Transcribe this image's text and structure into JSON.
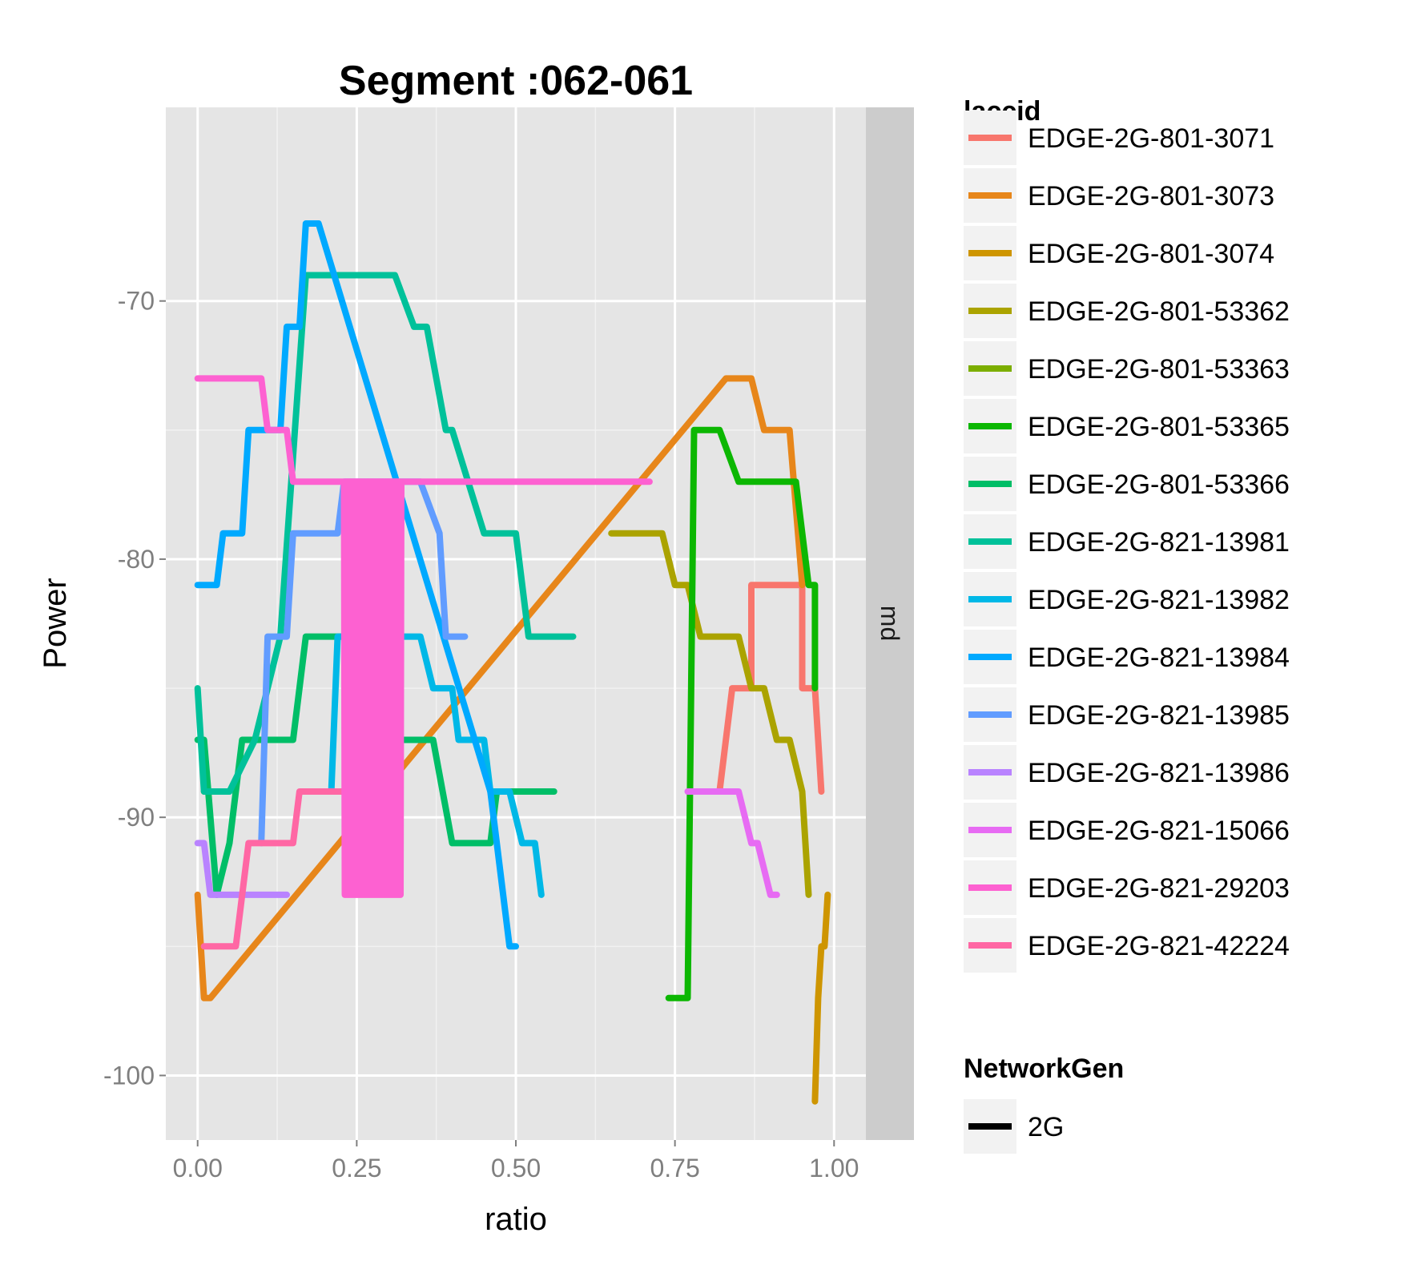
{
  "chart_data": {
    "type": "line",
    "title": "Segment :062-061",
    "xlabel": "ratio",
    "ylabel": "Power",
    "xlim": [
      -0.05,
      1.05
    ],
    "ylim": [
      -102.5,
      -62.5
    ],
    "x_ticks": [
      0.0,
      0.25,
      0.5,
      0.75,
      1.0
    ],
    "x_tick_labels": [
      "0.00",
      "0.25",
      "0.50",
      "0.75",
      "1.00"
    ],
    "y_ticks": [
      -70,
      -80,
      -90,
      -100
    ],
    "y_tick_labels": [
      "-70",
      "-80",
      "-90",
      "-100"
    ],
    "facet_strip_label": "md",
    "grid": true,
    "legend_position": "right",
    "legend_color_title": "laccid",
    "legend_linetype_title": "NetworkGen",
    "legend_linetype_entries": [
      {
        "label": "2G",
        "color": "#000000"
      }
    ],
    "series": [
      {
        "name": "EDGE-2G-801-3071",
        "color": "#F8766D",
        "x": [
          0.82,
          0.84,
          0.85,
          0.87,
          0.87,
          0.9,
          0.94,
          0.95,
          0.95,
          0.97,
          0.98
        ],
        "y": [
          -89,
          -85,
          -85,
          -85,
          -81,
          -81,
          -81,
          -81,
          -85,
          -85,
          -89
        ]
      },
      {
        "name": "EDGE-2G-801-3073",
        "color": "#E7861A",
        "x": [
          0.0,
          0.01,
          0.02,
          0.83,
          0.87,
          0.89,
          0.93,
          0.95
        ],
        "y": [
          -93,
          -97,
          -97,
          -73,
          -73,
          -75,
          -75,
          -81
        ]
      },
      {
        "name": "EDGE-2G-801-3074",
        "color": "#CE9500",
        "x": [
          0.97,
          0.975,
          0.98,
          0.985,
          0.99
        ],
        "y": [
          -101,
          -97,
          -95,
          -95,
          -93
        ]
      },
      {
        "name": "EDGE-2G-801-53362",
        "color": "#ABA300",
        "x": [
          0.65,
          0.73,
          0.75,
          0.77,
          0.79,
          0.81,
          0.85,
          0.87,
          0.89,
          0.91,
          0.93,
          0.95,
          0.96
        ],
        "y": [
          -79,
          -79,
          -81,
          -81,
          -83,
          -83,
          -83,
          -85,
          -85,
          -87,
          -87,
          -89,
          -93
        ]
      },
      {
        "name": "EDGE-2G-801-53363",
        "color": "#7CAE00",
        "x": [
          0.01,
          0.02
        ],
        "y": [
          -89,
          -89
        ]
      },
      {
        "name": "EDGE-2G-801-53365",
        "color": "#0CB702",
        "x": [
          0.74,
          0.77,
          0.78,
          0.82,
          0.85,
          0.87,
          0.94,
          0.96,
          0.97,
          0.97
        ],
        "y": [
          -97,
          -97,
          -75,
          -75,
          -77,
          -77,
          -77,
          -81,
          -81,
          -85
        ]
      },
      {
        "name": "EDGE-2G-801-53366",
        "color": "#00BE67",
        "x": [
          0.0,
          0.01,
          0.03,
          0.05,
          0.07,
          0.09,
          0.15,
          0.17,
          0.18,
          0.23,
          0.25,
          0.36,
          0.37,
          0.4,
          0.46,
          0.47,
          0.56
        ],
        "y": [
          -87,
          -87,
          -93,
          -91,
          -87,
          -87,
          -87,
          -83,
          -83,
          -83,
          -87,
          -87,
          -87,
          -91,
          -91,
          -89,
          -89
        ]
      },
      {
        "name": "EDGE-2G-821-13981",
        "color": "#00C19A",
        "x": [
          0.0,
          0.01,
          0.02,
          0.05,
          0.09,
          0.13,
          0.17,
          0.3,
          0.31,
          0.34,
          0.36,
          0.39,
          0.4,
          0.45,
          0.49,
          0.5,
          0.52,
          0.59
        ],
        "y": [
          -85,
          -89,
          -89,
          -89,
          -87,
          -83,
          -69,
          -69,
          -69,
          -71,
          -71,
          -75,
          -75,
          -79,
          -79,
          -79,
          -83,
          -83
        ]
      },
      {
        "name": "EDGE-2G-821-13982",
        "color": "#00B8E7",
        "x": [
          0.21,
          0.22,
          0.3,
          0.35,
          0.37,
          0.4,
          0.41,
          0.45,
          0.46,
          0.49,
          0.51,
          0.53,
          0.54
        ],
        "y": [
          -89,
          -83,
          -83,
          -83,
          -85,
          -85,
          -87,
          -87,
          -89,
          -89,
          -91,
          -91,
          -93
        ]
      },
      {
        "name": "EDGE-2G-821-13984",
        "color": "#00A9FF",
        "x": [
          0.0,
          0.03,
          0.04,
          0.07,
          0.08,
          0.13,
          0.14,
          0.16,
          0.17,
          0.19,
          0.46,
          0.47,
          0.49,
          0.5
        ],
        "y": [
          -81,
          -81,
          -79,
          -79,
          -75,
          -75,
          -71,
          -71,
          -67,
          -67,
          -89,
          -91,
          -95,
          -95
        ]
      },
      {
        "name": "EDGE-2G-821-13985",
        "color": "#619CFF",
        "x": [
          0.1,
          0.11,
          0.14,
          0.15,
          0.22,
          0.23,
          0.35,
          0.38,
          0.39,
          0.42
        ],
        "y": [
          -91,
          -83,
          -83,
          -79,
          -79,
          -77,
          -77,
          -79,
          -83,
          -83
        ]
      },
      {
        "name": "EDGE-2G-821-13986",
        "color": "#B983FF",
        "x": [
          0.0,
          0.01,
          0.02,
          0.14
        ],
        "y": [
          -91,
          -91,
          -93,
          -93
        ]
      },
      {
        "name": "EDGE-2G-821-15066",
        "color": "#E76BF3",
        "x": [
          0.77,
          0.85,
          0.87,
          0.88,
          0.9,
          0.91
        ],
        "y": [
          -89,
          -89,
          -91,
          -91,
          -93,
          -93
        ]
      },
      {
        "name": "EDGE-2G-821-29203",
        "color": "#FD61D1",
        "x": [
          0.0,
          0.1,
          0.11,
          0.14,
          0.15,
          0.31,
          0.71
        ],
        "y": [
          -73,
          -73,
          -75,
          -75,
          -77,
          -77,
          -77
        ]
      },
      {
        "name": "EDGE-2G-821-42224",
        "color": "#FF67A4",
        "x": [
          0.01,
          0.06,
          0.08,
          0.15,
          0.16,
          0.2,
          0.23
        ],
        "y": [
          -95,
          -95,
          -91,
          -91,
          -89,
          -89,
          -89
        ]
      }
    ],
    "oscillation_band": {
      "series": "EDGE-2G-821-29203",
      "x_range": [
        0.23,
        0.32
      ],
      "y_range": [
        -93,
        -77
      ]
    }
  }
}
